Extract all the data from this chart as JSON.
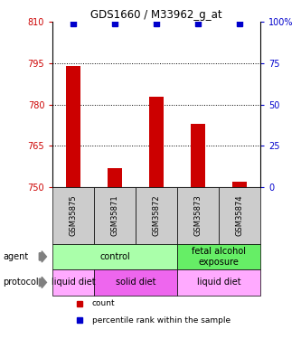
{
  "title": "GDS1660 / M33962_g_at",
  "samples": [
    "GSM35875",
    "GSM35871",
    "GSM35872",
    "GSM35873",
    "GSM35874"
  ],
  "bar_values": [
    794,
    757,
    783,
    773,
    752
  ],
  "bar_bottom": 750,
  "percentile_values": [
    99,
    99,
    99,
    99,
    99
  ],
  "ylim_left": [
    750,
    810
  ],
  "ylim_right": [
    0,
    100
  ],
  "yticks_left": [
    750,
    765,
    780,
    795,
    810
  ],
  "yticks_right": [
    0,
    25,
    50,
    75,
    100
  ],
  "bar_color": "#cc0000",
  "dot_color": "#0000cc",
  "agent_groups": [
    {
      "label": "control",
      "start": 0,
      "end": 3,
      "color": "#aaffaa"
    },
    {
      "label": "fetal alcohol\nexposure",
      "start": 3,
      "end": 5,
      "color": "#66ee66"
    }
  ],
  "protocol_groups": [
    {
      "label": "liquid diet",
      "start": 0,
      "end": 1,
      "color": "#ffaaff"
    },
    {
      "label": "solid diet",
      "start": 1,
      "end": 3,
      "color": "#ee66ee"
    },
    {
      "label": "liquid diet",
      "start": 3,
      "end": 5,
      "color": "#ffaaff"
    }
  ],
  "legend_items": [
    {
      "color": "#cc0000",
      "marker": "s",
      "label": "count"
    },
    {
      "color": "#0000cc",
      "marker": "s",
      "label": "percentile rank within the sample"
    }
  ],
  "tick_label_color_left": "#cc0000",
  "tick_label_color_right": "#0000cc",
  "sample_bg_color": "#cccccc",
  "gridline_color": "black",
  "gridline_style": ":"
}
